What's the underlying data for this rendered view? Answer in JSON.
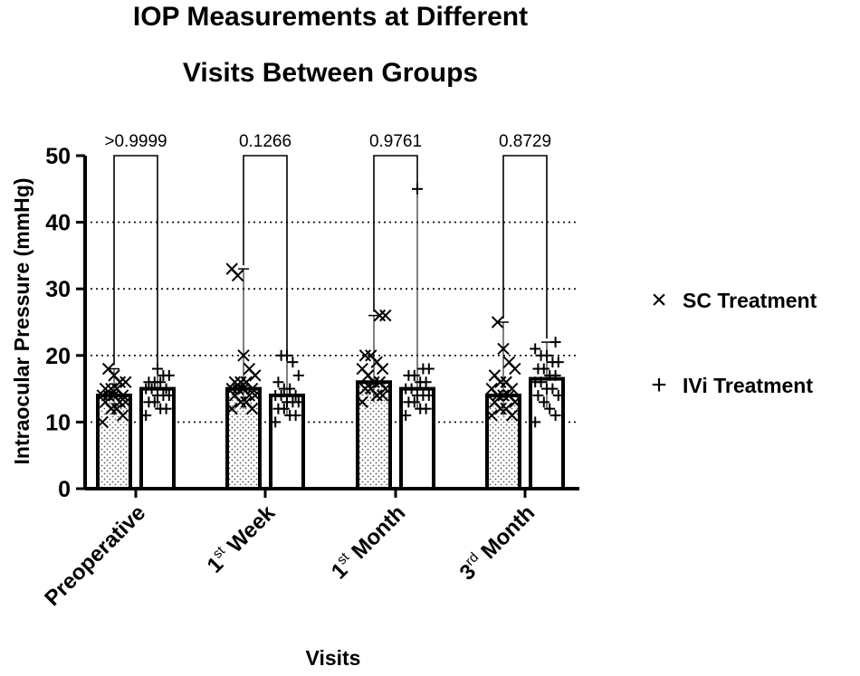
{
  "title_line1": "IOP Measurements at Different",
  "title_line2": "Visits Between Groups",
  "chart_data": {
    "type": "bar",
    "xlabel": "Visits",
    "ylabel": "Intraocular Pressure (mmHg)",
    "ylim": [
      0,
      50
    ],
    "yticks": [
      "0",
      "10",
      "20",
      "30",
      "40",
      "50"
    ],
    "grid": "horizontal dotted at 10, 20, 30, 40",
    "legend_position": "right",
    "categories": [
      {
        "base": "Preoperative",
        "sup": "",
        "suffix": ""
      },
      {
        "base": "1",
        "sup": "st",
        "suffix": " Week"
      },
      {
        "base": "1",
        "sup": "st",
        "suffix": " Month"
      },
      {
        "base": "3",
        "sup": "rd",
        "suffix": " Month"
      }
    ],
    "comparisons": [
      ">0.9999",
      "0.1266",
      "0.9761",
      "0.8729"
    ],
    "series": [
      {
        "name": "SC Treatment",
        "marker": "×",
        "fill": "dotted",
        "values": [
          14,
          15,
          16,
          14
        ],
        "error_low": [
          11,
          12,
          13,
          11
        ],
        "error_high": [
          18,
          33,
          26,
          25
        ],
        "points": [
          [
            10,
            11,
            12,
            12,
            13,
            13,
            13,
            14,
            14,
            14,
            14,
            15,
            15,
            15,
            16,
            16,
            17,
            18
          ],
          [
            12,
            12,
            13,
            13,
            14,
            14,
            14,
            15,
            15,
            15,
            15,
            16,
            16,
            16,
            17,
            18,
            20,
            32,
            33
          ],
          [
            13,
            14,
            14,
            15,
            15,
            15,
            16,
            16,
            17,
            18,
            18,
            19,
            20,
            20,
            26,
            26
          ],
          [
            11,
            11,
            12,
            12,
            13,
            13,
            14,
            14,
            14,
            15,
            15,
            16,
            16,
            17,
            18,
            19,
            21,
            25
          ]
        ]
      },
      {
        "name": "IVi Treatment",
        "marker": "+",
        "fill": "white",
        "values": [
          15,
          14,
          15,
          16.5
        ],
        "error_low": [
          12,
          11,
          12,
          12
        ],
        "error_high": [
          18,
          20,
          45,
          22
        ],
        "points": [
          [
            11,
            12,
            12,
            13,
            13,
            14,
            14,
            14,
            15,
            15,
            15,
            16,
            16,
            16,
            17,
            17,
            18
          ],
          [
            10,
            11,
            11,
            12,
            12,
            13,
            13,
            13,
            14,
            14,
            14,
            15,
            15,
            16,
            17,
            19,
            20,
            20
          ],
          [
            11,
            12,
            12,
            13,
            13,
            14,
            14,
            14,
            15,
            15,
            16,
            16,
            17,
            17,
            18,
            18,
            45
          ],
          [
            10,
            11,
            12,
            13,
            14,
            14,
            15,
            15,
            16,
            16,
            17,
            17,
            18,
            18,
            19,
            19,
            20,
            20,
            21,
            22
          ]
        ]
      }
    ]
  }
}
